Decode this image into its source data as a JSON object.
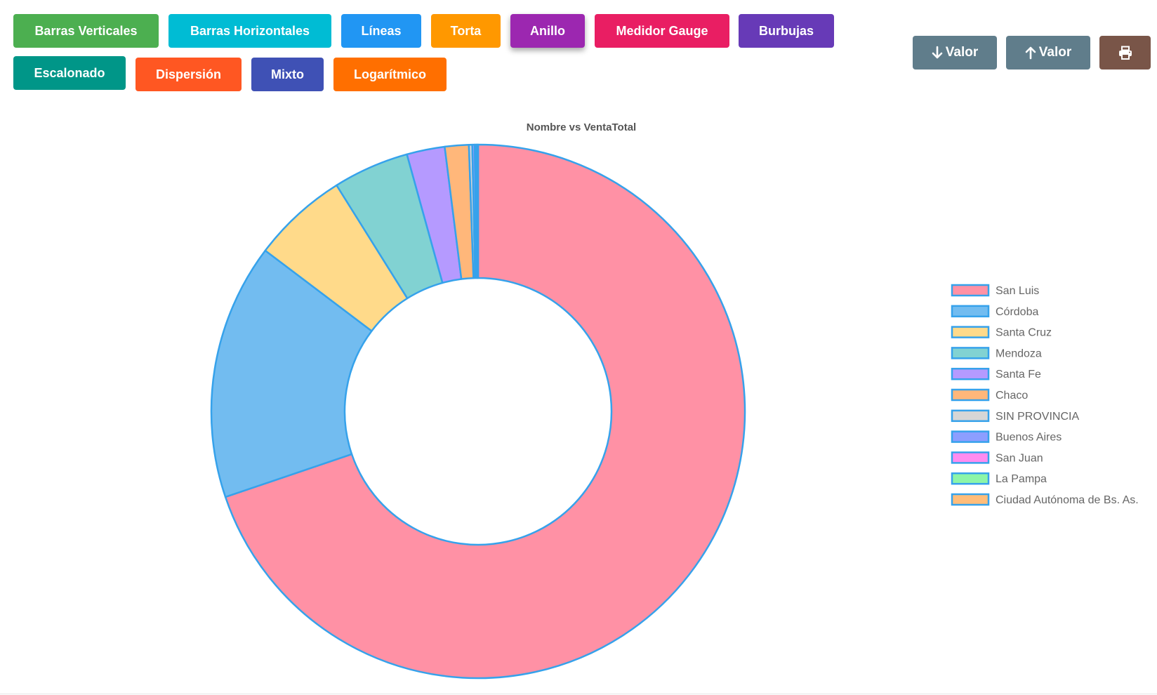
{
  "toolbar": {
    "chart_types": [
      {
        "label": "Barras Verticales",
        "color": "#4caf50"
      },
      {
        "label": "Barras Horizontales",
        "color": "#00bcd4"
      },
      {
        "label": "Líneas",
        "color": "#2196f3"
      },
      {
        "label": "Torta",
        "color": "#ff9800"
      },
      {
        "label": "Anillo",
        "color": "#9c27b0",
        "active": true
      },
      {
        "label": "Medidor Gauge",
        "color": "#e91e63"
      },
      {
        "label": "Burbujas",
        "color": "#673ab7"
      },
      {
        "label": "Escalonado",
        "color": "#009688"
      },
      {
        "label": "Dispersión",
        "color": "#ff5722"
      },
      {
        "label": "Mixto",
        "color": "#3f51b5"
      },
      {
        "label": "Logarítmico",
        "color": "#ff6f00"
      }
    ],
    "sort_desc_label": "Valor",
    "sort_desc_icon": "arrow-down-icon",
    "sort_asc_label": "Valor",
    "sort_asc_icon": "arrow-up-icon",
    "print_icon": "printer-icon",
    "sort_color": "#607d8b",
    "print_color": "#795548"
  },
  "chart_data": {
    "type": "doughnut",
    "title": "Nombre vs VentaTotal",
    "legend_position": "right",
    "border_color": "#36a2eb",
    "categories": [
      "San Luis",
      "Córdoba",
      "Santa Cruz",
      "Mendoza",
      "Santa Fe",
      "Chaco",
      "SIN PROVINCIA",
      "Buenos Aires",
      "San Juan",
      "La Pampa",
      "Ciudad Autónoma de Bs. As."
    ],
    "values": [
      69.8,
      15.5,
      5.8,
      4.6,
      2.3,
      1.45,
      0.2,
      0.15,
      0.1,
      0.05,
      0.05
    ],
    "colors": [
      "#ff91a5",
      "#72bcf0",
      "#ffda8a",
      "#81d2d2",
      "#b59aff",
      "#ffb77a",
      "#d6d6d6",
      "#8c9eff",
      "#ff8cf0",
      "#8cf5a8",
      "#ffbd7a"
    ]
  }
}
